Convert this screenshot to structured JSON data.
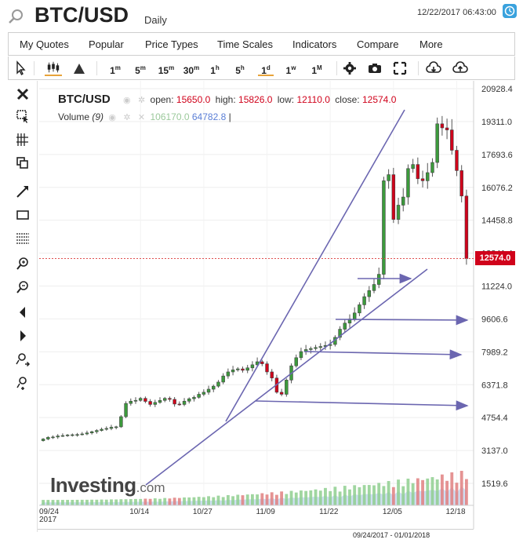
{
  "header": {
    "symbol": "BTC/USD",
    "interval": "Daily",
    "datetime": "12/22/2017 06:43:00"
  },
  "menu": [
    "My Quotes",
    "Popular",
    "Price Types",
    "Time Scales",
    "Indicators",
    "Compare",
    "More"
  ],
  "toolbar": {
    "cursor_icon": "arrow-cursor-icon",
    "timeframes": [
      {
        "label": "1",
        "sup": "m"
      },
      {
        "label": "5",
        "sup": "m"
      },
      {
        "label": "15",
        "sup": "m"
      },
      {
        "label": "30",
        "sup": "m"
      },
      {
        "label": "1",
        "sup": "h"
      },
      {
        "label": "5",
        "sup": "h"
      },
      {
        "label": "1",
        "sup": "d"
      },
      {
        "label": "1",
        "sup": "w"
      },
      {
        "label": "1",
        "sup": "M"
      }
    ],
    "active_timeframe": "1d"
  },
  "legend": {
    "pair": "BTC/USD",
    "open_label": "open:",
    "open": "15650.0",
    "high_label": "high:",
    "high": "15826.0",
    "low_label": "low:",
    "low": "12110.0",
    "close_label": "close:",
    "close": "12574.0",
    "volume_label": "Volume",
    "volume_period": "(9)",
    "volume_value_1": "106170.0",
    "volume_value_2": "64782.8",
    "volume_sep": "|"
  },
  "last_price": "12574.0",
  "watermark": {
    "brand": "Investing",
    "suffix": ".com"
  },
  "range_label": "09/24/2017 - 01/01/2018",
  "colors": {
    "up": "#3c9a3c",
    "down": "#d0021b",
    "trendline": "#6b66b0",
    "volume_area": "#b9d2ee",
    "price_line": "#e05050"
  },
  "chart_data": {
    "type": "candlestick",
    "title": "BTC/USD",
    "x_tick_labels": [
      "09/24\n2017",
      "10/14",
      "10/27",
      "11/09",
      "11/22",
      "12/05",
      "12/18"
    ],
    "y_tick_labels": [
      "20928.4",
      "19311.0",
      "17693.6",
      "16076.2",
      "14458.8",
      "12841.4",
      "11224.0",
      "9606.6",
      "7989.2",
      "6371.8",
      "4754.4",
      "3137.0",
      "1519.6"
    ],
    "ylim": [
      1519.6,
      20928.4
    ],
    "close_start": 3700,
    "close": [
      3700,
      3780,
      3800,
      3850,
      3870,
      3900,
      3910,
      3920,
      3950,
      4000,
      4060,
      4120,
      4180,
      4220,
      4280,
      4300,
      4800,
      5450,
      5560,
      5600,
      5700,
      5550,
      5400,
      5500,
      5600,
      5700,
      5650,
      5420,
      5400,
      5560,
      5680,
      5750,
      5900,
      6000,
      6150,
      6300,
      6500,
      6800,
      7000,
      7100,
      7150,
      7080,
      7200,
      7350,
      7500,
      7400,
      7000,
      6700,
      6000,
      5900,
      6600,
      7300,
      7700,
      8000,
      8100,
      8150,
      8200,
      8250,
      8300,
      8350,
      8700,
      9100,
      9400,
      9600,
      9900,
      10300,
      10700,
      11000,
      11300,
      11800,
      16400,
      16700,
      14500,
      15200,
      15600,
      17000,
      17200,
      16500,
      16400,
      16800,
      17300,
      19200,
      19000,
      18900,
      17900,
      16900,
      15650,
      12574
    ],
    "opens_first": 3620,
    "volume_note": "relative volume bars, unlabeled",
    "annotations": [
      {
        "type": "trend-line",
        "desc": "upper rising support from mid Nov low to December peak"
      },
      {
        "type": "trend-line",
        "desc": "lower rising support from 10/14 to current close"
      },
      {
        "type": "arrow",
        "desc": "horizontal arrows projecting support levels to the right"
      }
    ]
  }
}
